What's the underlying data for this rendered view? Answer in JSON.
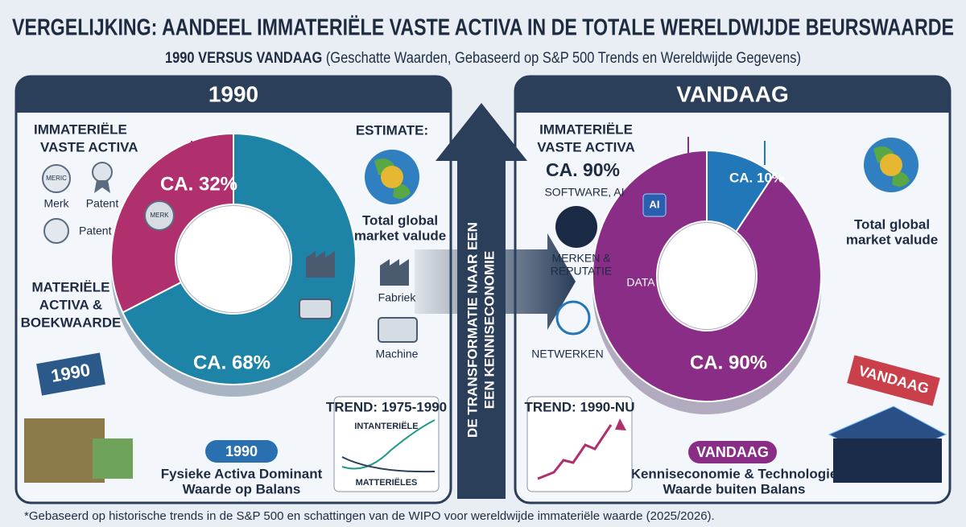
{
  "header": {
    "title": "VERGELIJKING: AANDEEL IMMATERIËLE VASTE ACTIVA IN DE TOTALE WERELDWIJDE BEURSWAARDE",
    "subtitle_bold": "1990 VERSUS VANDAAG",
    "subtitle": "(Geschatte Waarden, Gebaseerd op S&P 500 Trends en Wereldwijde Gegevens)"
  },
  "arrow_text": [
    "DE TRANSFORMATIE NAAR EEN",
    "EEN KENNISECONOMIE"
  ],
  "panels": [
    {
      "title": "1990",
      "intangible_heading": [
        "IMMATERIËLE",
        "VASTE ACTIVA"
      ],
      "icon_texts": [
        "MERIC",
        "MERK"
      ],
      "icon_labels": [
        "Merk",
        "Patent",
        "Patent"
      ],
      "tangible_heading": [
        "MATERIËLE",
        "ACTIVA &",
        "BOEKWAARDE"
      ],
      "estimate": "ESTIMATE:",
      "globe_label": [
        "Total global",
        "market valude"
      ],
      "asset_labels": [
        "Fabriek",
        "Machine"
      ],
      "donut": [
        {
          "label": "CA. 32%",
          "value": 32,
          "color": "#b0306e"
        },
        {
          "label": "CA. 68%",
          "value": 68,
          "color": "#1d84a8"
        }
      ],
      "sign": "1990",
      "badge": "1990",
      "caption": [
        "Fysieke Activa Dominant",
        "Waarde op Balans"
      ],
      "trend": {
        "title": "TREND: 1975-1990",
        "labels": [
          "INTANTERIËLE",
          "MATTERIËLES"
        ]
      }
    },
    {
      "title": "VANDAAG",
      "intangible_heading": [
        "IMMATERIËLE",
        "VASTE ACTIVA"
      ],
      "intangible_share": "CA. 90%",
      "icon_texts": [
        "AI"
      ],
      "icon_labels": [
        "SOFTWARE, AI",
        "MERKEN &",
        "REPUTATIE",
        "DATA",
        "NETWERKEN"
      ],
      "globe_label": [
        "Total global",
        "market valude"
      ],
      "donut": [
        {
          "label": "CA. 10%",
          "value": 10,
          "color": "#2277b8"
        },
        {
          "label": "CA. 90%",
          "value": 90,
          "color": "#8a2d86"
        }
      ],
      "sign": "VANDAAG",
      "badge": "VANDAAG",
      "caption": [
        "Kenniseconomie & Technologie",
        "Waarde buiten Balans"
      ],
      "trend": {
        "title": "TREND: 1990-NU"
      }
    }
  ],
  "footnote": "*Gebaseerd op historische trends in de S&P 500 en schattingen van de WIPO voor wereldwijde immateriële waarde (2025/2026)."
}
